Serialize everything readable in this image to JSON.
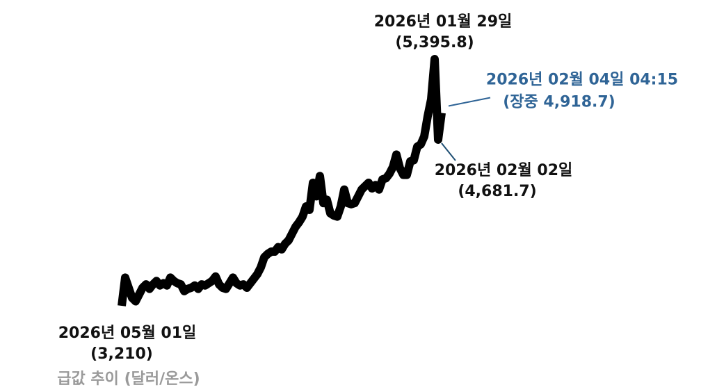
{
  "chart_data": {
    "type": "line",
    "title": "급값 추이 (달러/온스)",
    "categories": [
      "2026년 05월 01일",
      null,
      null,
      null,
      null,
      null,
      null,
      null,
      null,
      null,
      null,
      null,
      null,
      null,
      null,
      null,
      null,
      null,
      null,
      null,
      null,
      null,
      null,
      null,
      null,
      null,
      null,
      null,
      null,
      null,
      null,
      null,
      null,
      null,
      null,
      null,
      null,
      null,
      null,
      null,
      null,
      null,
      null,
      null,
      null,
      null,
      null,
      null,
      null,
      null,
      null,
      null,
      null,
      null,
      null,
      null,
      null,
      null,
      null,
      null,
      null,
      null,
      null,
      null,
      null,
      null,
      null,
      null,
      null,
      null,
      null,
      null,
      null,
      null,
      null,
      null,
      null,
      null,
      null,
      null,
      null,
      null,
      null,
      null,
      null,
      null,
      null,
      null,
      null,
      null,
      "2026년 01월 29일",
      "2026년 02월 02일",
      "2026년 02월 04일 04:15"
    ],
    "values": [
      3210,
      3460,
      3370,
      3280,
      3250,
      3310,
      3370,
      3400,
      3360,
      3400,
      3430,
      3390,
      3410,
      3390,
      3460,
      3430,
      3410,
      3400,
      3340,
      3360,
      3370,
      3390,
      3360,
      3400,
      3390,
      3410,
      3430,
      3470,
      3400,
      3370,
      3360,
      3410,
      3460,
      3410,
      3390,
      3400,
      3370,
      3410,
      3450,
      3490,
      3550,
      3640,
      3670,
      3690,
      3690,
      3730,
      3710,
      3760,
      3790,
      3850,
      3910,
      3950,
      4000,
      4090,
      4060,
      4300,
      4180,
      4360,
      4120,
      4150,
      4030,
      4010,
      4000,
      4090,
      4240,
      4120,
      4110,
      4120,
      4180,
      4240,
      4270,
      4300,
      4250,
      4280,
      4240,
      4330,
      4340,
      4380,
      4440,
      4550,
      4430,
      4370,
      4370,
      4490,
      4500,
      4620,
      4640,
      4710,
      4890,
      5040,
      5395.8,
      4681.7,
      4918.7
    ],
    "value_labels": [
      "(3,210)",
      null,
      null,
      null,
      null,
      null,
      null,
      null,
      null,
      null,
      null,
      null,
      null,
      null,
      null,
      null,
      null,
      null,
      null,
      null,
      null,
      null,
      null,
      null,
      null,
      null,
      null,
      null,
      null,
      null,
      null,
      null,
      null,
      null,
      null,
      null,
      null,
      null,
      null,
      null,
      null,
      null,
      null,
      null,
      null,
      null,
      null,
      null,
      null,
      null,
      null,
      null,
      null,
      null,
      null,
      null,
      null,
      null,
      null,
      null,
      null,
      null,
      null,
      null,
      null,
      null,
      null,
      null,
      null,
      null,
      null,
      null,
      null,
      null,
      null,
      null,
      null,
      null,
      null,
      null,
      null,
      null,
      null,
      null,
      null,
      null,
      null,
      null,
      null,
      null,
      "(5,395.8)",
      "(4,681.7)",
      "(장중 4,918.7)"
    ],
    "color": "#000000"
  }
}
